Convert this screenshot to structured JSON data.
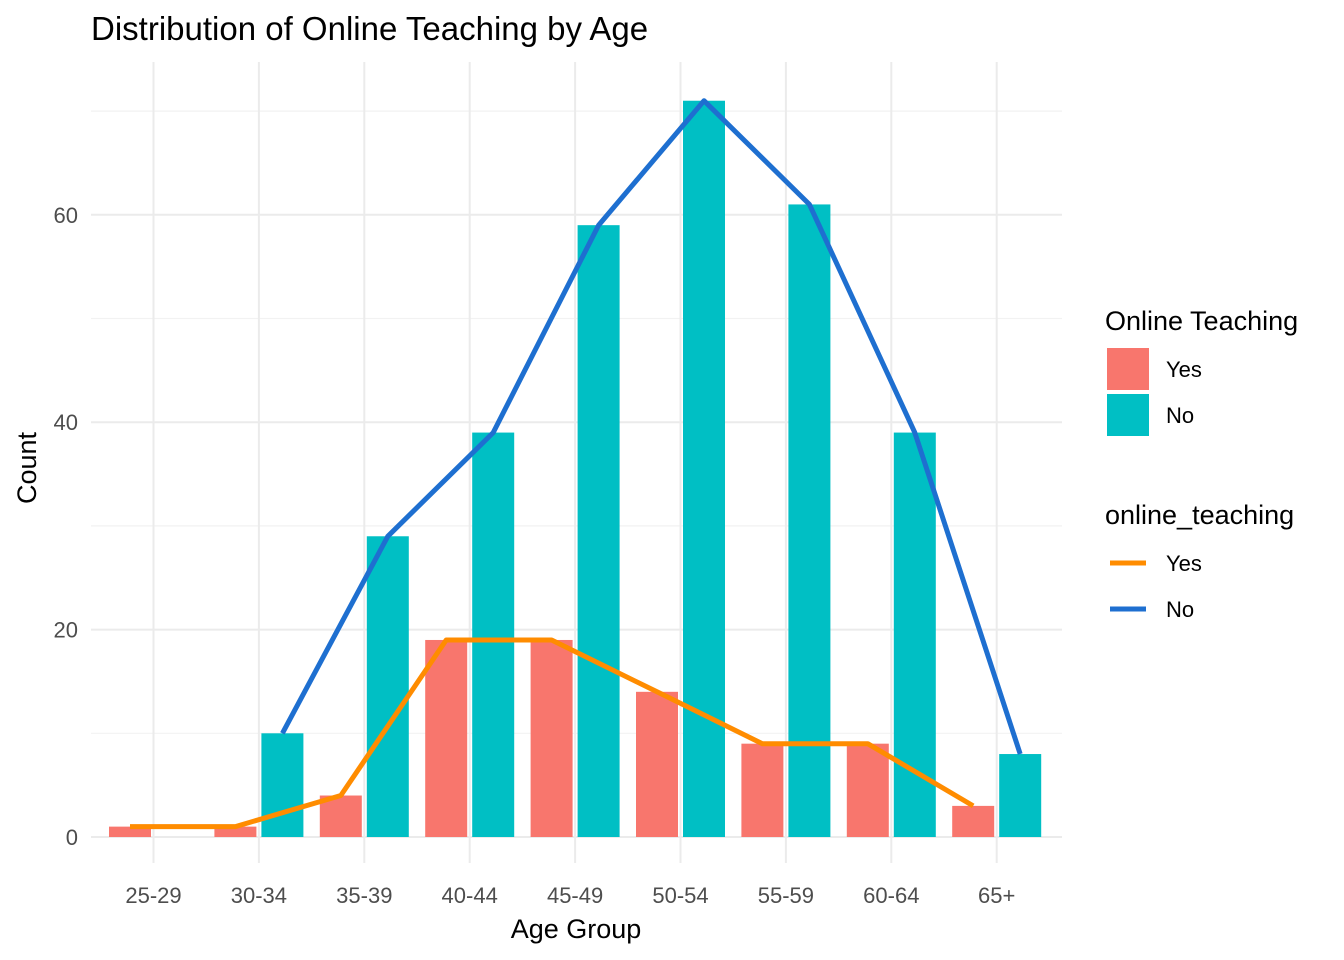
{
  "chart_data": {
    "type": "bar",
    "title": "Distribution of Online Teaching by Age",
    "xlabel": "Age Group",
    "ylabel": "Count",
    "categories": [
      "25-29",
      "30-34",
      "35-39",
      "40-44",
      "45-49",
      "50-54",
      "55-59",
      "60-64",
      "65+"
    ],
    "ylim": [
      0,
      74.5
    ],
    "yticks": [
      0,
      20,
      40,
      60
    ],
    "grid": true,
    "legend_position": "right",
    "series": [
      {
        "name": "Yes",
        "values": [
          1,
          1,
          4,
          19,
          19,
          14,
          9,
          9,
          3
        ],
        "color": "#F8766D"
      },
      {
        "name": "No",
        "values": [
          0,
          10,
          29,
          39,
          59,
          71,
          61,
          39,
          8
        ],
        "color": "#00BFC4"
      }
    ],
    "lines": [
      {
        "name": "Yes",
        "values": [
          1,
          1,
          4,
          19,
          19,
          14,
          9,
          9,
          3
        ],
        "color": "#FF8C00"
      },
      {
        "name": "No",
        "values": [
          null,
          10,
          29,
          39,
          59,
          71,
          61,
          39,
          8
        ],
        "color": "#1E6FD0"
      }
    ],
    "legends": [
      {
        "title": "Online Teaching",
        "kind": "fill",
        "items": [
          {
            "label": "Yes",
            "color": "#F8766D"
          },
          {
            "label": "No",
            "color": "#00BFC4"
          }
        ]
      },
      {
        "title": "online_teaching",
        "kind": "line",
        "items": [
          {
            "label": "Yes",
            "color": "#FF8C00"
          },
          {
            "label": "No",
            "color": "#1E6FD0"
          }
        ]
      }
    ]
  }
}
